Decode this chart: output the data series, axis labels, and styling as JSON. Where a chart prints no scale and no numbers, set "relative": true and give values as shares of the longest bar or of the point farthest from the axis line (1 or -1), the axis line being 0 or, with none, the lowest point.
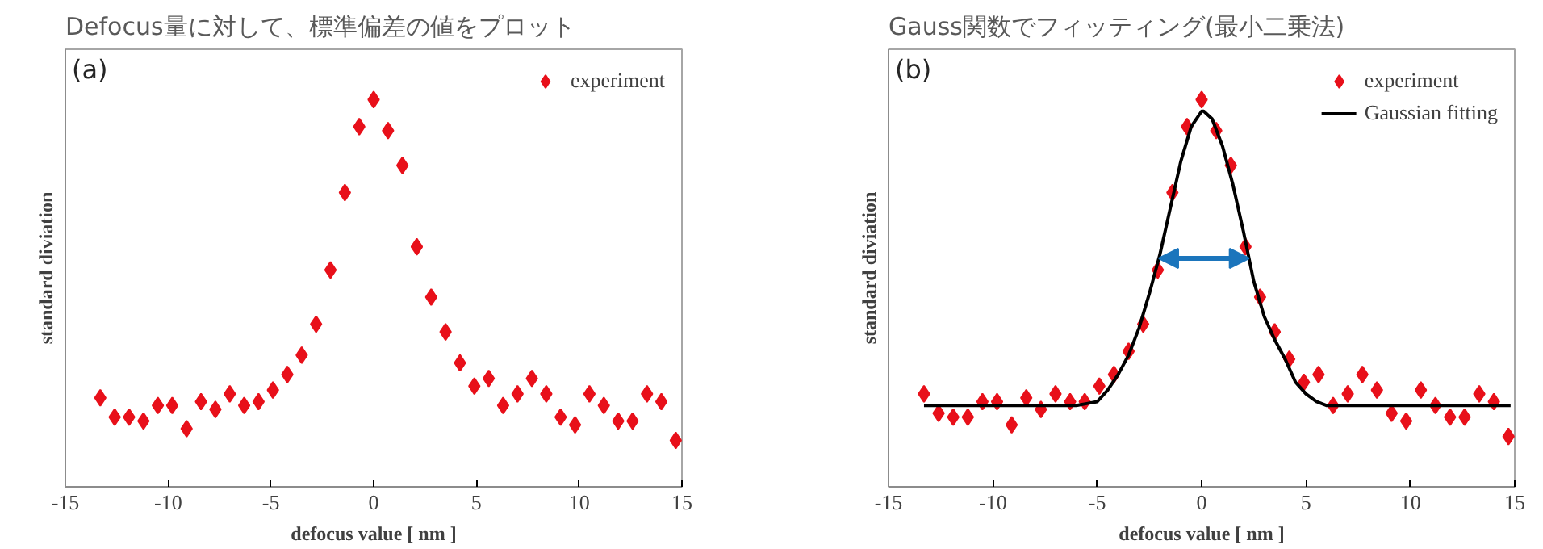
{
  "chart_data": [
    {
      "type": "scatter",
      "title": "Defocus量に対して、標準偏差の値をプロット",
      "xlabel": "defocus value [ nm ]",
      "ylabel": "standard diviation",
      "relative": true,
      "xlim": [
        -15,
        15
      ],
      "xticks": [
        -15,
        -10,
        -5,
        0,
        5,
        10,
        15
      ],
      "legend": "top right",
      "marker": "diamond",
      "annotations": [
        "(a)"
      ],
      "x": [
        -13.3,
        -12.6,
        -11.9,
        -11.2,
        -10.5,
        -9.8,
        -9.1,
        -8.4,
        -7.7,
        -7.0,
        -6.3,
        -5.6,
        -4.9,
        -4.2,
        -3.5,
        -2.8,
        -2.1,
        -1.4,
        -0.7,
        0.0,
        0.7,
        1.4,
        2.1,
        2.8,
        3.5,
        4.2,
        4.9,
        5.6,
        6.3,
        7.0,
        7.7,
        8.4,
        9.1,
        9.8,
        10.5,
        11.2,
        11.9,
        12.6,
        13.3,
        14.0,
        14.7
      ],
      "series": [
        {
          "name": "experiment",
          "color": "#e8101a",
          "values": [
            0.23,
            0.18,
            0.18,
            0.17,
            0.21,
            0.21,
            0.15,
            0.22,
            0.2,
            0.24,
            0.21,
            0.22,
            0.25,
            0.29,
            0.34,
            0.42,
            0.56,
            0.76,
            0.93,
            1.0,
            0.92,
            0.83,
            0.62,
            0.49,
            0.4,
            0.32,
            0.26,
            0.28,
            0.21,
            0.24,
            0.28,
            0.24,
            0.18,
            0.16,
            0.24,
            0.21,
            0.17,
            0.17,
            0.24,
            0.22,
            0.12
          ]
        }
      ]
    },
    {
      "type": "scatter",
      "title": "Gauss関数でフィッティング(最小二乗法)",
      "xlabel": "defocus value [ nm ]",
      "ylabel": "standard diviation",
      "relative": true,
      "xlim": [
        -15,
        15
      ],
      "xticks": [
        -15,
        -10,
        -5,
        0,
        5,
        10,
        15
      ],
      "legend": "top right",
      "marker": "diamond",
      "annotations": [
        "(b)"
      ],
      "x": [
        -13.3,
        -12.6,
        -11.9,
        -11.2,
        -10.5,
        -9.8,
        -9.1,
        -8.4,
        -7.7,
        -7.0,
        -6.3,
        -5.6,
        -4.9,
        -4.2,
        -3.5,
        -2.8,
        -2.1,
        -1.4,
        -0.7,
        0.0,
        0.7,
        1.4,
        2.1,
        2.8,
        3.5,
        4.2,
        4.9,
        5.6,
        6.3,
        7.0,
        7.7,
        8.4,
        9.1,
        9.8,
        10.5,
        11.2,
        11.9,
        12.6,
        13.3,
        14.0,
        14.7
      ],
      "series": [
        {
          "name": "experiment",
          "color": "#e8101a",
          "values": [
            0.24,
            0.19,
            0.18,
            0.18,
            0.22,
            0.22,
            0.16,
            0.23,
            0.2,
            0.24,
            0.22,
            0.22,
            0.26,
            0.29,
            0.35,
            0.42,
            0.56,
            0.76,
            0.93,
            1.0,
            0.92,
            0.83,
            0.62,
            0.49,
            0.4,
            0.33,
            0.27,
            0.29,
            0.21,
            0.24,
            0.29,
            0.25,
            0.19,
            0.17,
            0.25,
            0.21,
            0.18,
            0.18,
            0.24,
            0.22,
            0.13
          ]
        },
        {
          "name": "Gaussian fitting",
          "type": "line",
          "marker": "none",
          "color": "#000000",
          "x": [
            -13.3,
            -6,
            -5.5,
            -5,
            -4.5,
            -4,
            -3.5,
            -3,
            -2.5,
            -2,
            -1.5,
            -1,
            -0.5,
            0,
            0.1,
            0.5,
            1,
            1.5,
            2,
            2.5,
            3,
            3.5,
            4,
            4.5,
            5,
            5.5,
            6,
            14.8
          ],
          "values": [
            0.21,
            0.21,
            0.215,
            0.22,
            0.25,
            0.29,
            0.34,
            0.41,
            0.5,
            0.6,
            0.72,
            0.84,
            0.93,
            0.97,
            0.97,
            0.95,
            0.88,
            0.78,
            0.66,
            0.53,
            0.44,
            0.38,
            0.33,
            0.27,
            0.24,
            0.22,
            0.21,
            0.21
          ]
        }
      ]
    }
  ]
}
